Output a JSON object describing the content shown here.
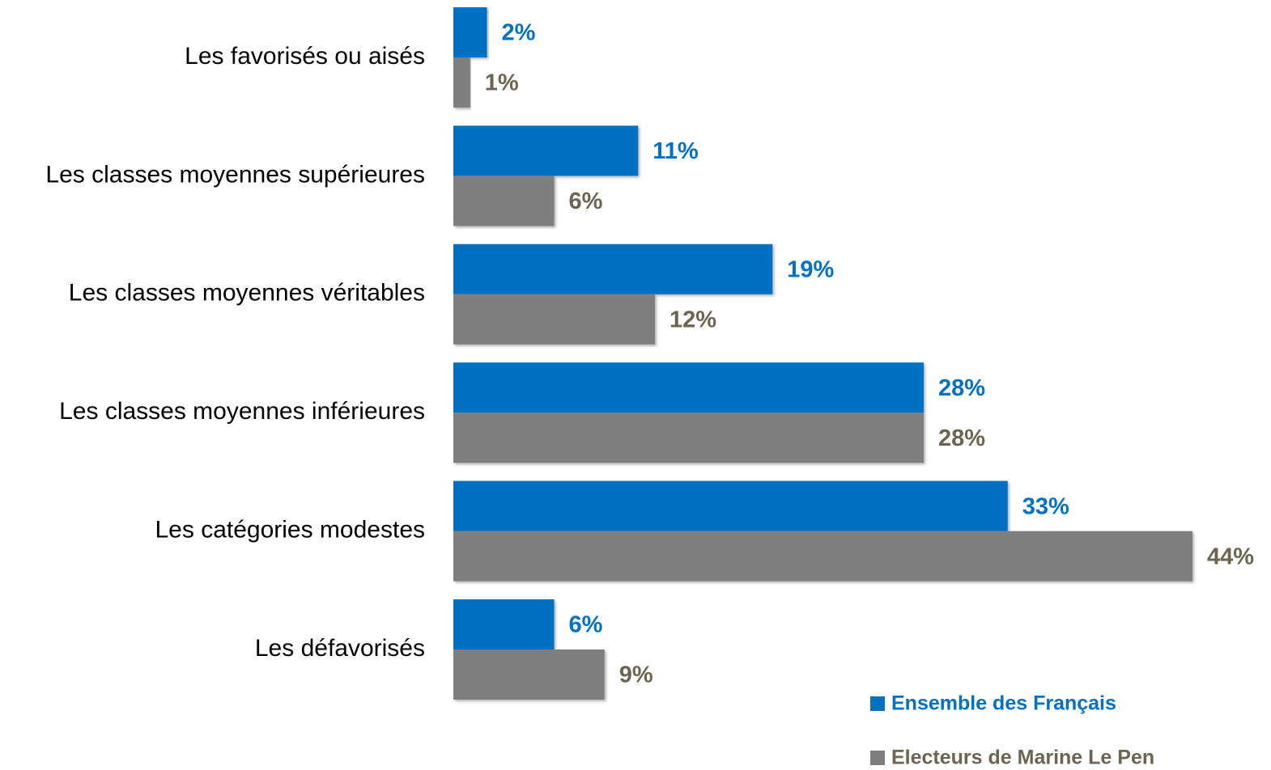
{
  "chart_data": {
    "type": "bar",
    "orientation": "horizontal",
    "categories": [
      "Les favorisés ou aisés",
      "Les classes moyennes supérieures",
      "Les classes moyennes véritables",
      "Les classes moyennes inférieures",
      "Les catégories modestes",
      "Les défavorisés"
    ],
    "series": [
      {
        "name": "Ensemble des Français",
        "color": "#0070c0",
        "label_color": "#0070c0",
        "values": [
          2,
          11,
          19,
          28,
          33,
          6
        ],
        "value_labels": [
          "2%",
          "11%",
          "19%",
          "28%",
          "33%",
          "6%"
        ]
      },
      {
        "name": "Electeurs de Marine Le Pen",
        "color": "#7f7f7f",
        "label_color": "#6b6450",
        "values": [
          1,
          6,
          12,
          28,
          44,
          9
        ],
        "value_labels": [
          "1%",
          "6%",
          "12%",
          "28%",
          "44%",
          "9%"
        ]
      }
    ],
    "legend": "bottom-right"
  }
}
